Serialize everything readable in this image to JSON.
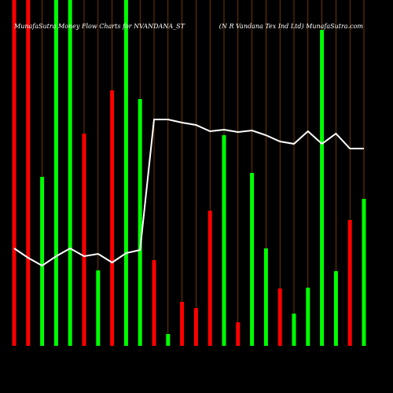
{
  "chart_data": {
    "type": "bar",
    "title": "MunafaSutra  Money Flow  Charts for NVANDANA_ST",
    "subtitle": "(N  R Vandana  Tex Ind Ltd) MunafaSutra.com",
    "categories": [
      null,
      null,
      null,
      null,
      null,
      null,
      null,
      null,
      null,
      null,
      null,
      null,
      null,
      null,
      null,
      null,
      null,
      null,
      null,
      null,
      null,
      null,
      null,
      null,
      null,
      null
    ],
    "values": [
      440,
      440,
      215,
      440,
      440,
      270,
      96,
      325,
      440,
      314,
      109,
      15,
      56,
      48,
      172,
      268,
      30,
      220,
      124,
      73,
      41,
      74,
      402,
      95,
      160,
      187
    ],
    "colors": [
      "#ff0000",
      "#ff0000",
      "#00ff00",
      "#00ff00",
      "#00ff00",
      "#ff0000",
      "#00ff00",
      "#ff0000",
      "#00ff00",
      "#00ff00",
      "#ff0000",
      "#00ff00",
      "#ff0000",
      "#ff0000",
      "#ff0000",
      "#00ff00",
      "#ff0000",
      "#00ff00",
      "#00ff00",
      "#ff0000",
      "#00ff00",
      "#00ff00",
      "#00ff00",
      "#00ff00",
      "#ff0000",
      "#00ff00"
    ],
    "line": {
      "color": "#ffffff",
      "values": [
        124,
        112,
        102,
        114,
        124,
        114,
        117,
        106,
        118,
        122,
        288,
        288,
        284,
        281,
        273,
        275,
        272,
        274,
        268,
        260,
        257,
        273,
        257,
        270,
        251,
        251
      ]
    },
    "ylim": [
      0,
      440
    ]
  }
}
